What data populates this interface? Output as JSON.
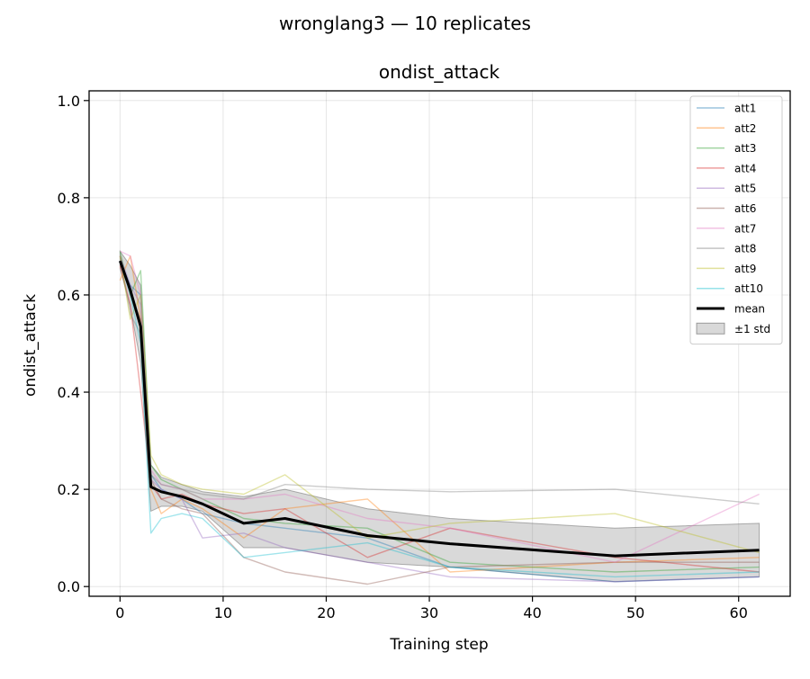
{
  "chart_data": {
    "type": "line",
    "suptitle": "wronglang3  —  10 replicates",
    "title": "ondist_attack",
    "xlabel": "Training step",
    "ylabel": "ondist_attack",
    "xlim": [
      -3,
      65
    ],
    "ylim": [
      -0.02,
      1.02
    ],
    "xticks": [
      0,
      10,
      20,
      30,
      40,
      50,
      60
    ],
    "yticks": [
      0.0,
      0.2,
      0.4,
      0.6,
      0.8,
      1.0
    ],
    "xtick_labels": [
      "0",
      "10",
      "20",
      "30",
      "40",
      "50",
      "60"
    ],
    "ytick_labels": [
      "0.0",
      "0.2",
      "0.4",
      "0.6",
      "0.8",
      "1.0"
    ],
    "grid": true,
    "legend_position": "top-right",
    "x": [
      0,
      1,
      2,
      3,
      4,
      6,
      8,
      12,
      16,
      24,
      32,
      48,
      62
    ],
    "series": [
      {
        "name": "att1",
        "color": "#1f77b4",
        "values": [
          0.67,
          0.62,
          0.6,
          0.23,
          0.2,
          0.18,
          0.15,
          0.13,
          0.12,
          0.1,
          0.04,
          0.01,
          0.02
        ]
      },
      {
        "name": "att2",
        "color": "#ff7f0e",
        "values": [
          0.63,
          0.68,
          0.55,
          0.2,
          0.15,
          0.18,
          0.16,
          0.1,
          0.16,
          0.18,
          0.03,
          0.05,
          0.06
        ]
      },
      {
        "name": "att3",
        "color": "#2ca02c",
        "values": [
          0.69,
          0.6,
          0.65,
          0.25,
          0.22,
          0.2,
          0.18,
          0.14,
          0.13,
          0.12,
          0.05,
          0.03,
          0.04
        ]
      },
      {
        "name": "att4",
        "color": "#d62728",
        "values": [
          0.66,
          0.58,
          0.4,
          0.21,
          0.18,
          0.19,
          0.17,
          0.15,
          0.16,
          0.06,
          0.12,
          0.06,
          0.03
        ]
      },
      {
        "name": "att5",
        "color": "#9467bd",
        "values": [
          0.68,
          0.62,
          0.58,
          0.22,
          0.2,
          0.18,
          0.1,
          0.11,
          0.08,
          0.05,
          0.02,
          0.01,
          0.02
        ]
      },
      {
        "name": "att6",
        "color": "#8c564b",
        "values": [
          0.68,
          0.6,
          0.55,
          0.22,
          0.18,
          0.16,
          0.15,
          0.06,
          0.03,
          0.005,
          0.04,
          0.05,
          0.05
        ]
      },
      {
        "name": "att7",
        "color": "#e377c2",
        "values": [
          0.69,
          0.68,
          0.6,
          0.24,
          0.21,
          0.2,
          0.18,
          0.18,
          0.19,
          0.14,
          0.12,
          0.05,
          0.19
        ]
      },
      {
        "name": "att8",
        "color": "#7f7f7f",
        "values": [
          0.68,
          0.56,
          0.52,
          0.23,
          0.21,
          0.2,
          0.19,
          0.18,
          0.21,
          0.2,
          0.195,
          0.2,
          0.17
        ]
      },
      {
        "name": "att9",
        "color": "#bcbd22",
        "values": [
          0.68,
          0.55,
          0.6,
          0.27,
          0.23,
          0.21,
          0.2,
          0.19,
          0.23,
          0.1,
          0.13,
          0.15,
          0.07
        ]
      },
      {
        "name": "att10",
        "color": "#17becf",
        "values": [
          0.67,
          0.6,
          0.5,
          0.11,
          0.14,
          0.15,
          0.14,
          0.06,
          0.07,
          0.09,
          0.04,
          0.02,
          0.03
        ]
      }
    ],
    "mean": {
      "name": "mean",
      "color": "#000000",
      "values": [
        0.67,
        0.61,
        0.535,
        0.205,
        0.195,
        0.185,
        0.17,
        0.13,
        0.14,
        0.105,
        0.088,
        0.063,
        0.075
      ]
    },
    "std_band": {
      "name": "±1 std",
      "lower": [
        0.655,
        0.575,
        0.46,
        0.155,
        0.165,
        0.165,
        0.155,
        0.08,
        0.08,
        0.05,
        0.04,
        0.01,
        0.02
      ],
      "upper": [
        0.69,
        0.66,
        0.62,
        0.25,
        0.225,
        0.21,
        0.195,
        0.185,
        0.2,
        0.16,
        0.14,
        0.12,
        0.13
      ]
    }
  }
}
